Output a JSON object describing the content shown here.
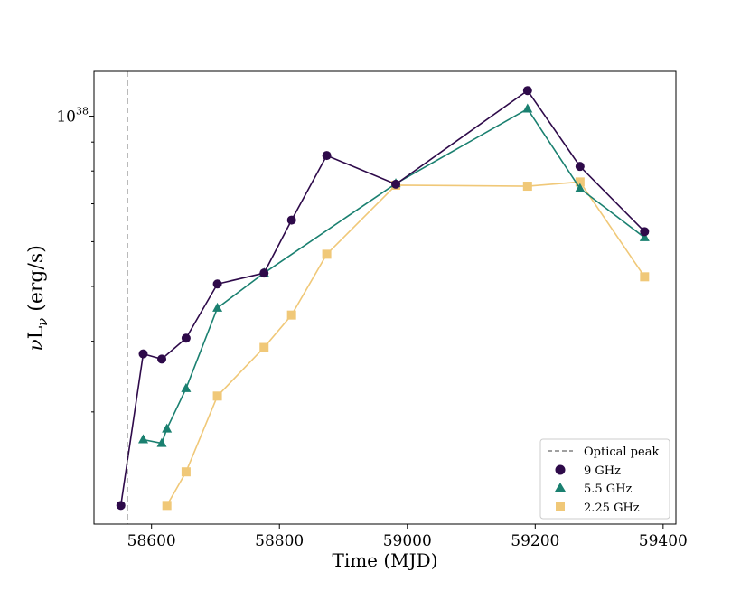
{
  "chart_data": {
    "type": "line",
    "xlabel": "Time (MJD)",
    "ylabel": "νL",
    "ylabel_subscript": "ν",
    "ylabel_units": " (erg/s)",
    "xlim": [
      58510,
      59420
    ],
    "ylim": [
      1.9e+37,
      1.2e+38
    ],
    "y_scale": "log",
    "x_ticks": [
      {
        "value": 58600,
        "label": "58600"
      },
      {
        "value": 58800,
        "label": "58800"
      },
      {
        "value": 59000,
        "label": "59000"
      },
      {
        "value": 59200,
        "label": "59200"
      },
      {
        "value": 59400,
        "label": "59400"
      }
    ],
    "y_major_tick": {
      "value": 1e+38,
      "base": "10",
      "exponent": "38"
    },
    "y_minor_ticks": [
      3e+37,
      4e+37,
      5e+37,
      6e+37,
      7e+37,
      8e+37,
      9e+37
    ],
    "vline": {
      "x": 58562,
      "label": "Optical peak",
      "color": "#808080",
      "style": "dashed"
    },
    "grid": false,
    "legend_position": "lower-right",
    "series": [
      {
        "name": "9 GHz",
        "color": "#2e0a4a",
        "marker": "circle",
        "x": [
          58552,
          58587,
          58616,
          58654,
          58703,
          58776,
          58819,
          58874,
          58982,
          59188,
          59270,
          59371
        ],
        "y": [
          2.05e+37,
          3.8e+37,
          3.72e+37,
          4.05e+37,
          5.05e+37,
          5.28e+37,
          6.55e+37,
          8.52e+37,
          7.58e+37,
          1.11e+38,
          8.15e+37,
          6.25e+37
        ]
      },
      {
        "name": "5.5 GHz",
        "color": "#1a8070",
        "marker": "triangle",
        "x": [
          58587,
          58616,
          58624,
          58654,
          58703,
          58776,
          58982,
          59188,
          59270,
          59371
        ],
        "y": [
          2.68e+37,
          2.64e+37,
          2.8e+37,
          3.3e+37,
          4.58e+37,
          5.28e+37,
          7.6e+37,
          1.03e+38,
          7.45e+37,
          6.1e+37
        ]
      },
      {
        "name": "2.25 GHz",
        "color": "#f0c878",
        "marker": "square",
        "x": [
          58624,
          58654,
          58703,
          58776,
          58819,
          58874,
          58982,
          59188,
          59270,
          59371
        ],
        "y": [
          2.05e+37,
          2.35e+37,
          3.2e+37,
          3.9e+37,
          4.45e+37,
          5.7e+37,
          7.55e+37,
          7.52e+37,
          7.65e+37,
          5.2e+37
        ]
      }
    ]
  }
}
